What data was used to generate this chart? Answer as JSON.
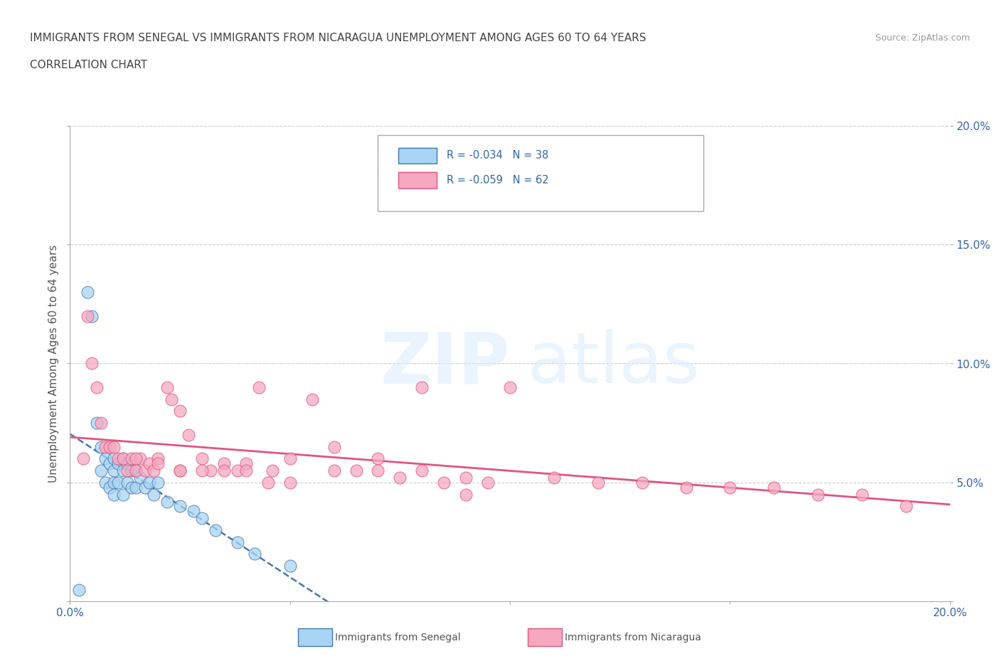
{
  "title_line1": "IMMIGRANTS FROM SENEGAL VS IMMIGRANTS FROM NICARAGUA UNEMPLOYMENT AMONG AGES 60 TO 64 YEARS",
  "title_line2": "CORRELATION CHART",
  "source_text": "Source: ZipAtlas.com",
  "ylabel": "Unemployment Among Ages 60 to 64 years",
  "xlim": [
    0.0,
    0.2
  ],
  "ylim": [
    0.0,
    0.2
  ],
  "xticks": [
    0.0,
    0.05,
    0.1,
    0.15,
    0.2
  ],
  "yticks": [
    0.0,
    0.05,
    0.1,
    0.15,
    0.2
  ],
  "watermark_zip": "ZIP",
  "watermark_atlas": "atlas",
  "legend_r_senegal": "R = -0.034",
  "legend_n_senegal": "N = 38",
  "legend_r_nicaragua": "R = -0.059",
  "legend_n_nicaragua": "N = 62",
  "color_senegal": "#a8d4f5",
  "color_nicaragua": "#f5a8c0",
  "trend_senegal_color": "#4477aa",
  "trend_nicaragua_color": "#e05580",
  "title_color": "#444444",
  "axis_tick_color": "#3366aa",
  "grid_color": "#cccccc",
  "legend_label_senegal": "Immigrants from Senegal",
  "legend_label_nicaragua": "Immigrants from Nicaragua",
  "senegal_x": [
    0.002,
    0.004,
    0.005,
    0.006,
    0.007,
    0.007,
    0.008,
    0.008,
    0.009,
    0.009,
    0.01,
    0.01,
    0.01,
    0.01,
    0.011,
    0.011,
    0.012,
    0.012,
    0.012,
    0.013,
    0.013,
    0.014,
    0.014,
    0.015,
    0.015,
    0.016,
    0.017,
    0.018,
    0.019,
    0.02,
    0.022,
    0.025,
    0.028,
    0.03,
    0.033,
    0.038,
    0.042,
    0.05
  ],
  "senegal_y": [
    0.005,
    0.13,
    0.12,
    0.075,
    0.065,
    0.055,
    0.06,
    0.05,
    0.058,
    0.048,
    0.06,
    0.055,
    0.05,
    0.045,
    0.058,
    0.05,
    0.06,
    0.055,
    0.045,
    0.058,
    0.05,
    0.055,
    0.048,
    0.055,
    0.048,
    0.052,
    0.048,
    0.05,
    0.045,
    0.05,
    0.042,
    0.04,
    0.038,
    0.035,
    0.03,
    0.025,
    0.02,
    0.015
  ],
  "nicaragua_x": [
    0.003,
    0.004,
    0.005,
    0.006,
    0.007,
    0.008,
    0.009,
    0.01,
    0.011,
    0.012,
    0.013,
    0.014,
    0.015,
    0.016,
    0.017,
    0.018,
    0.019,
    0.02,
    0.022,
    0.023,
    0.025,
    0.027,
    0.03,
    0.032,
    0.035,
    0.038,
    0.04,
    0.043,
    0.046,
    0.05,
    0.055,
    0.06,
    0.065,
    0.07,
    0.075,
    0.08,
    0.085,
    0.09,
    0.095,
    0.1,
    0.11,
    0.12,
    0.13,
    0.14,
    0.15,
    0.16,
    0.17,
    0.18,
    0.19,
    0.025,
    0.03,
    0.04,
    0.05,
    0.06,
    0.07,
    0.08,
    0.09,
    0.015,
    0.02,
    0.025,
    0.035,
    0.045
  ],
  "nicaragua_y": [
    0.06,
    0.12,
    0.1,
    0.09,
    0.075,
    0.065,
    0.065,
    0.065,
    0.06,
    0.06,
    0.055,
    0.06,
    0.055,
    0.06,
    0.055,
    0.058,
    0.055,
    0.06,
    0.09,
    0.085,
    0.08,
    0.07,
    0.06,
    0.055,
    0.058,
    0.055,
    0.058,
    0.09,
    0.055,
    0.06,
    0.085,
    0.055,
    0.055,
    0.06,
    0.052,
    0.09,
    0.05,
    0.052,
    0.05,
    0.09,
    0.052,
    0.05,
    0.05,
    0.048,
    0.048,
    0.048,
    0.045,
    0.045,
    0.04,
    0.055,
    0.055,
    0.055,
    0.05,
    0.065,
    0.055,
    0.055,
    0.045,
    0.06,
    0.058,
    0.055,
    0.055,
    0.05
  ]
}
